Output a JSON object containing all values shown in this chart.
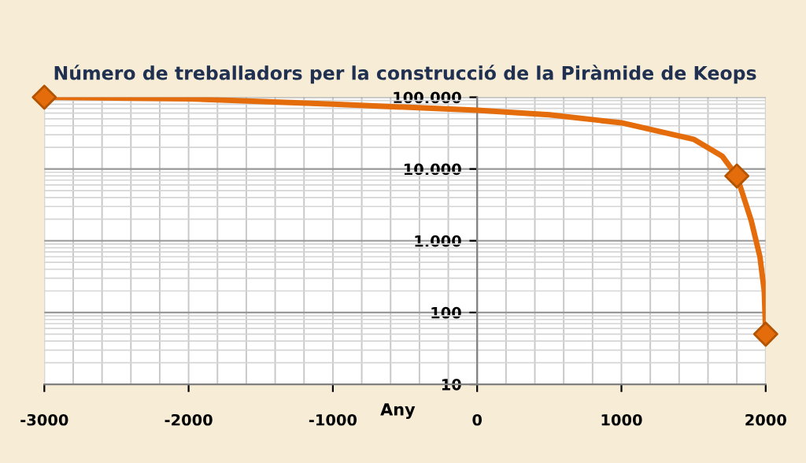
{
  "chart_data": {
    "type": "line",
    "title": "Número de treballadors per la construcció de la Piràmide de Keops",
    "xlabel": "Any",
    "log": "y",
    "grid": true,
    "xlim": [
      -3000,
      2000
    ],
    "xticks": [
      -3000,
      -2000,
      -1000,
      0,
      1000,
      2000
    ],
    "ylim": [
      10,
      100000
    ],
    "yticks": [
      10,
      100,
      {
        "value": 1000,
        "label": "1.000"
      },
      {
        "value": 10000,
        "label": "10.000"
      },
      {
        "value": 100000,
        "label": "100.000"
      }
    ],
    "series": [
      {
        "color": "#e46c0a",
        "marker": "none",
        "line_style": "solid",
        "x": [
          -3000,
          -2000,
          -1000,
          0,
          500,
          1000,
          1500,
          1700,
          1800,
          1900,
          1960,
          1990,
          2000
        ],
        "values": [
          100000,
          95000,
          80000,
          66000,
          57000,
          44000,
          26000,
          15000,
          8000,
          1900,
          600,
          200,
          50
        ]
      },
      {
        "type": "scatter",
        "color": "#e46c0a",
        "marker": "diamond",
        "x": [
          -3000,
          1800,
          2000
        ],
        "values": [
          100000,
          8000,
          50
        ]
      }
    ]
  }
}
